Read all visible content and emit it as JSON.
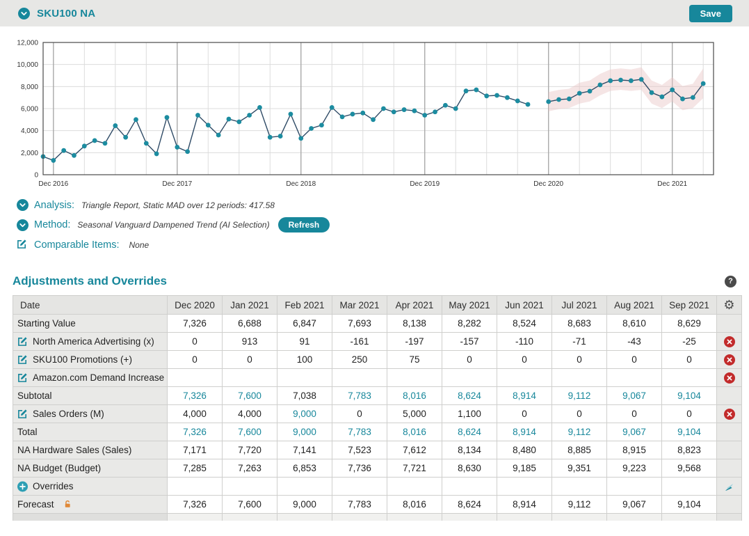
{
  "topbar": {
    "title": "SKU100 NA",
    "save_label": "Save",
    "collapse_icon": "chevron-circle-icon"
  },
  "info": {
    "analysis": {
      "icon": "chevron-circle-icon",
      "label": "Analysis:",
      "value": "Triangle Report, Static MAD over 12 periods: 417.58"
    },
    "method": {
      "icon": "chevron-circle-icon",
      "label": "Method:",
      "value": "Seasonal Vanguard Dampened Trend (AI Selection)",
      "refresh_label": "Refresh"
    },
    "comparable": {
      "icon": "edit-icon",
      "label": "Comparable Items:",
      "value": "None"
    }
  },
  "section": {
    "title": "Adjustments and Overrides",
    "help_icon": "help-icon"
  },
  "table": {
    "columns": [
      "Date",
      "Dec 2020",
      "Jan 2021",
      "Feb 2021",
      "Mar 2021",
      "Apr 2021",
      "May 2021",
      "Jun 2021",
      "Jul 2021",
      "Aug 2021",
      "Sep 2021"
    ],
    "settings_icon": "gear-icon",
    "accent_color": "#17879B",
    "rows": [
      {
        "label": "Starting Value",
        "icon": null,
        "values": [
          "7,326",
          "6,688",
          "6,847",
          "7,693",
          "8,138",
          "8,282",
          "8,524",
          "8,683",
          "8,610",
          "8,629"
        ],
        "teal": [],
        "action": null,
        "editable": false
      },
      {
        "label": "North America Advertising (x)",
        "icon": "edit-icon",
        "values": [
          "0",
          "913",
          "91",
          "-161",
          "-197",
          "-157",
          "-110",
          "-71",
          "-43",
          "-25"
        ],
        "teal": [],
        "action": "delete-icon",
        "editable": true
      },
      {
        "label": "SKU100 Promotions (+)",
        "icon": "edit-icon",
        "values": [
          "0",
          "0",
          "100",
          "250",
          "75",
          "0",
          "0",
          "0",
          "0",
          "0"
        ],
        "teal": [],
        "action": "delete-icon",
        "editable": true
      },
      {
        "label": "Amazon.com Demand Increase",
        "icon": "edit-icon",
        "values": [
          "",
          "",
          "",
          "",
          "",
          "",
          "",
          "",
          "",
          ""
        ],
        "teal": [],
        "action": "delete-icon",
        "editable": true
      },
      {
        "label": "Subtotal",
        "icon": null,
        "values": [
          "7,326",
          "7,600",
          "7,038",
          "7,783",
          "8,016",
          "8,624",
          "8,914",
          "9,112",
          "9,067",
          "9,104"
        ],
        "teal": [
          0,
          1,
          3,
          4,
          5,
          6,
          7,
          8,
          9
        ],
        "action": null,
        "editable": false
      },
      {
        "label": "Sales Orders (M)",
        "icon": "edit-icon",
        "values": [
          "4,000",
          "4,000",
          "9,000",
          "0",
          "5,000",
          "1,100",
          "0",
          "0",
          "0",
          "0"
        ],
        "teal": [
          2
        ],
        "action": "delete-icon",
        "editable": true
      },
      {
        "label": "Total",
        "icon": null,
        "values": [
          "7,326",
          "7,600",
          "9,000",
          "7,783",
          "8,016",
          "8,624",
          "8,914",
          "9,112",
          "9,067",
          "9,104"
        ],
        "teal": [
          0,
          1,
          2,
          3,
          4,
          5,
          6,
          7,
          8,
          9
        ],
        "action": null,
        "editable": false
      },
      {
        "label": "NA Hardware Sales (Sales)",
        "icon": null,
        "values": [
          "7,171",
          "7,720",
          "7,141",
          "7,523",
          "7,612",
          "8,134",
          "8,480",
          "8,885",
          "8,915",
          "8,823"
        ],
        "teal": [],
        "action": null,
        "editable": false
      },
      {
        "label": "NA Budget (Budget)",
        "icon": null,
        "values": [
          "7,285",
          "7,263",
          "6,853",
          "7,736",
          "7,721",
          "8,630",
          "9,185",
          "9,351",
          "9,223",
          "9,568"
        ],
        "teal": [],
        "action": null,
        "editable": false
      },
      {
        "label": "Overrides",
        "icon": "plus-circle-icon",
        "values": [
          "",
          "",
          "",
          "",
          "",
          "",
          "",
          "",
          "",
          ""
        ],
        "teal": [],
        "action": "fill-icon",
        "editable": false
      },
      {
        "label": "Forecast",
        "icon": null,
        "label_suffix_icon": "unlock-icon",
        "values": [
          "7,326",
          "7,600",
          "9,000",
          "7,783",
          "8,016",
          "8,624",
          "8,914",
          "9,112",
          "9,067",
          "9,104"
        ],
        "teal": [],
        "action": null,
        "editable": true
      }
    ]
  },
  "chart_data": {
    "type": "line",
    "title": "",
    "xlabel": "",
    "ylabel": "",
    "ylim": [
      0,
      12000
    ],
    "slots": 66,
    "grid_every": 3,
    "legend": "none",
    "y_ticks": [
      {
        "v": 0,
        "label": "0"
      },
      {
        "v": 2000,
        "label": "2,000"
      },
      {
        "v": 4000,
        "label": "4,000"
      },
      {
        "v": 6000,
        "label": "6,000"
      },
      {
        "v": 8000,
        "label": "8,000"
      },
      {
        "v": 10000,
        "label": "10,000"
      },
      {
        "v": 12000,
        "label": "12,000"
      }
    ],
    "x_ticks": [
      {
        "slot": 1,
        "label": "Dec 2016"
      },
      {
        "slot": 13,
        "label": "Dec 2017"
      },
      {
        "slot": 25,
        "label": "Dec 2018"
      },
      {
        "slot": 37,
        "label": "Dec 2019"
      },
      {
        "slot": 49,
        "label": "Dec 2020"
      },
      {
        "slot": 61,
        "label": "Dec 2021"
      }
    ],
    "series": [
      {
        "name": "history",
        "type": "line+points",
        "start_slot": 0,
        "values": [
          1650,
          1300,
          2200,
          1750,
          2600,
          3100,
          2850,
          4450,
          3400,
          5000,
          2850,
          1900,
          5200,
          2500,
          2100,
          5400,
          4500,
          3600,
          5050,
          4800,
          5400,
          6100,
          3400,
          3500,
          5500,
          3300,
          4200,
          4500,
          6100,
          5250,
          5500,
          5600,
          5000,
          6000,
          5700,
          5900,
          5800,
          5400,
          5700,
          6300,
          6000,
          7600,
          7700,
          7150,
          7200,
          7000,
          6700,
          6380
        ]
      },
      {
        "name": "forecast",
        "type": "line+points",
        "start_slot": 49,
        "values": [
          6630,
          6820,
          6880,
          7390,
          7580,
          8150,
          8530,
          8590,
          8530,
          8650,
          7450,
          7070,
          7700,
          6880,
          7010,
          8270
        ]
      },
      {
        "name": "forecast-confidence-band",
        "type": "band",
        "start_slot": 49,
        "upper": [
          7500,
          7700,
          7800,
          8350,
          8550,
          9150,
          9550,
          9650,
          9550,
          9750,
          8550,
          8150,
          8850,
          8050,
          8250,
          9650
        ],
        "lower": [
          5750,
          5950,
          6050,
          6450,
          6650,
          7200,
          7600,
          7700,
          7600,
          7700,
          6450,
          6050,
          6650,
          5850,
          6050,
          6950
        ]
      }
    ],
    "colors": {
      "line": "#2F4B66",
      "point": "#1C8CA0",
      "band": "#E9C5C5",
      "grid": "#DCDCDC",
      "grid_major": "#A9A9A9",
      "axis": "#4A4A4A",
      "tick_text": "#333333"
    }
  }
}
